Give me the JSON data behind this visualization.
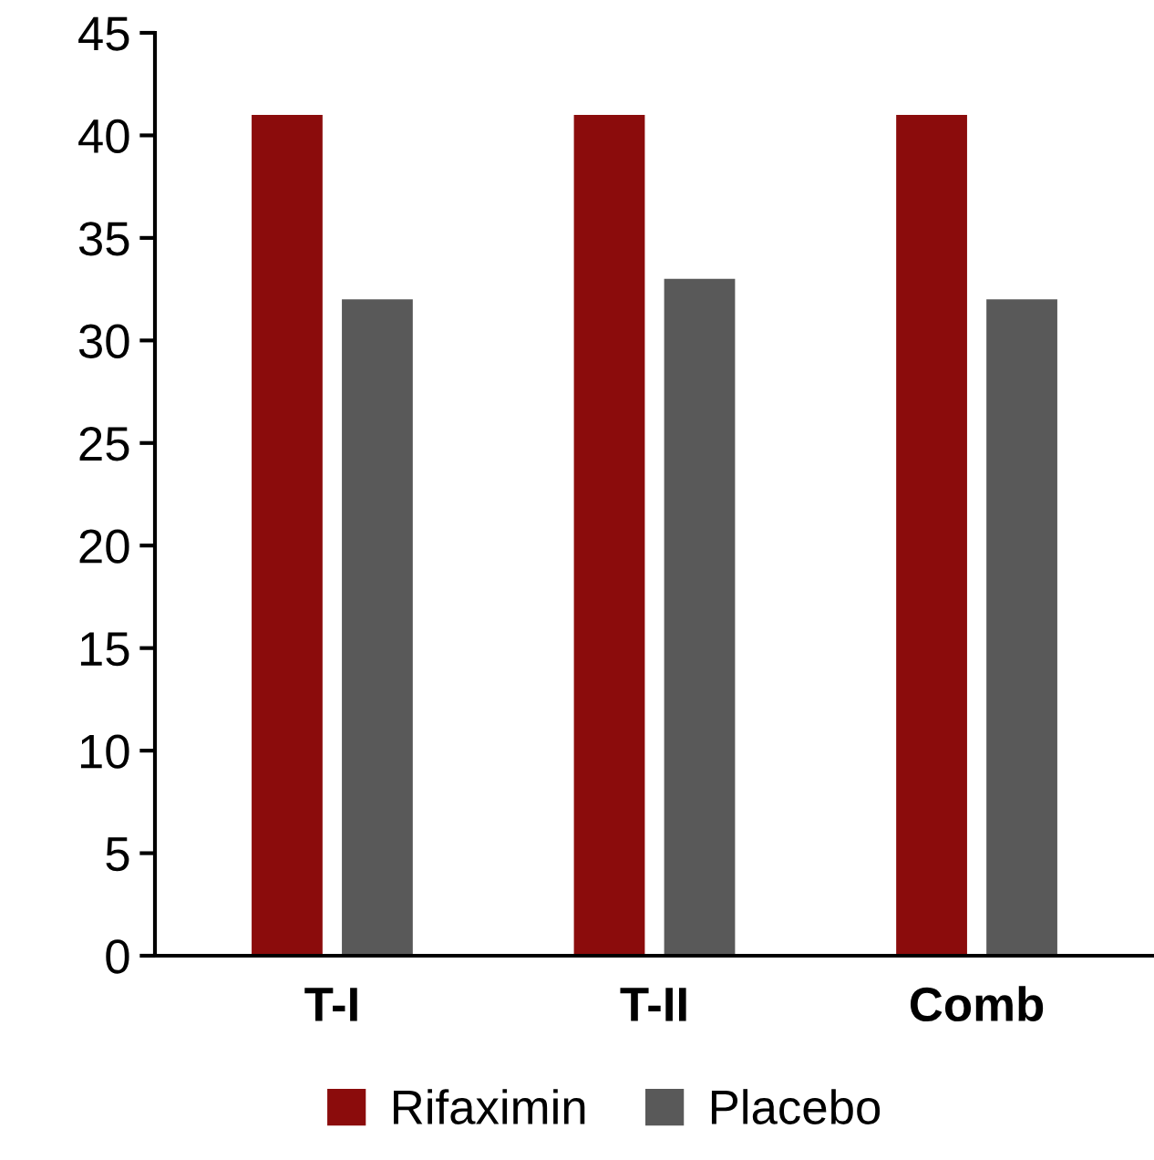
{
  "chart_data": {
    "type": "bar",
    "categories": [
      "T-I",
      "T-II",
      "Comb"
    ],
    "series": [
      {
        "name": "Rifaximin",
        "color": "#8b0c0c",
        "values": [
          41,
          41,
          41
        ]
      },
      {
        "name": "Placebo",
        "color": "#595959",
        "values": [
          32,
          33,
          32
        ]
      }
    ],
    "ylim": [
      0,
      45
    ],
    "yticks": [
      0,
      5,
      10,
      15,
      20,
      25,
      30,
      35,
      40,
      45
    ],
    "grid": false,
    "legend": "bottom"
  }
}
